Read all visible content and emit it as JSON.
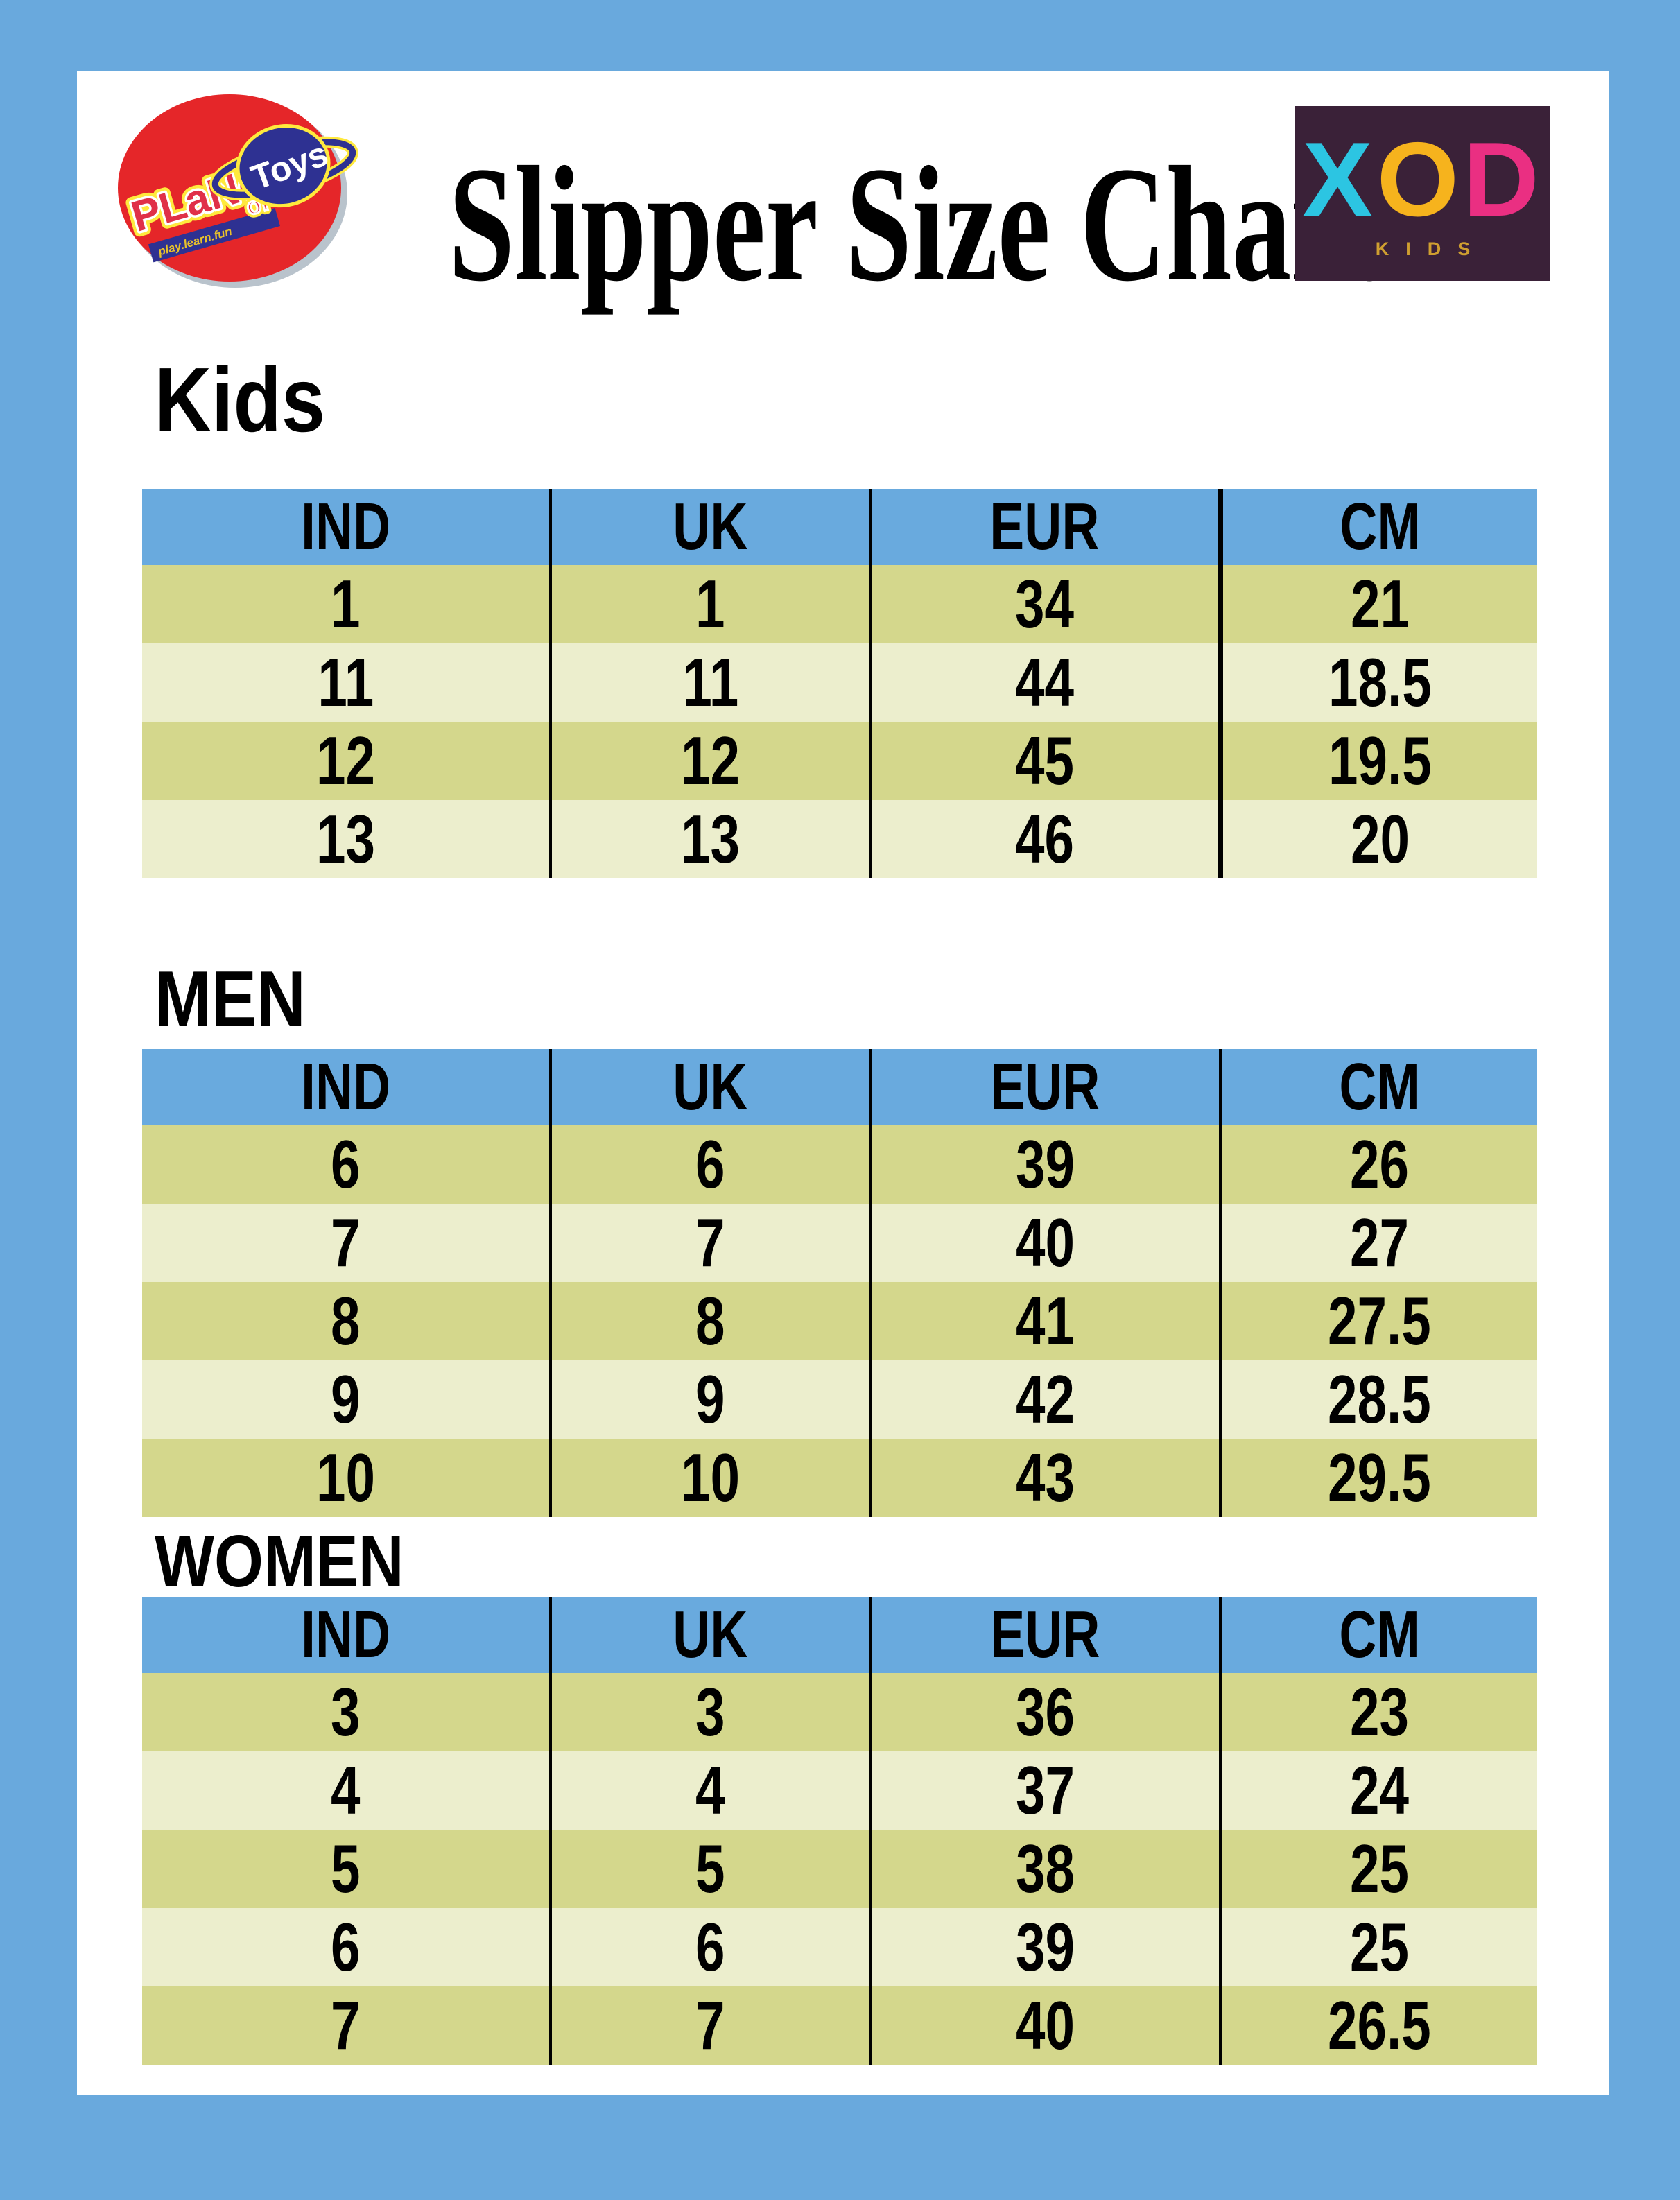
{
  "header": {
    "title": "Slipper Size Chart",
    "planet_logo": {
      "name": "PLaNet",
      "of": "of",
      "toys": "Toys",
      "tagline": "play.learn.fun"
    },
    "xod_logo": {
      "x": "X",
      "o": "O",
      "d": "D",
      "subtitle": "KIDS"
    }
  },
  "colors": {
    "frame_blue": "#69a9dd",
    "table_header_blue": "#69aade",
    "row_dark": "#d4d78c",
    "row_light": "#eceecd",
    "xod_bg": "#3a2138",
    "xod_x": "#2cc5e2",
    "xod_o": "#f6b31d",
    "xod_d": "#ea2f82",
    "xod_kids_text": "#cf9f30",
    "planet_red": "#e52629",
    "planet_navy": "#2e3192",
    "planet_yellow": "#ffe93d",
    "planet_letter_red": "#e03048",
    "tagline_yellow": "#e8c12a",
    "text_black": "#000000"
  },
  "sections": [
    {
      "heading": "Kids",
      "columns": [
        "IND",
        "UK",
        "EUR",
        "CM"
      ],
      "rows": [
        [
          "1",
          "1",
          "34",
          "21"
        ],
        [
          "11",
          "11",
          "44",
          "18.5"
        ],
        [
          "12",
          "12",
          "45",
          "19.5"
        ],
        [
          "13",
          "13",
          "46",
          "20"
        ]
      ]
    },
    {
      "heading": "MEN",
      "columns": [
        "IND",
        "UK",
        "EUR",
        "CM"
      ],
      "rows": [
        [
          "6",
          "6",
          "39",
          "26"
        ],
        [
          "7",
          "7",
          "40",
          "27"
        ],
        [
          "8",
          "8",
          "41",
          "27.5"
        ],
        [
          "9",
          "9",
          "42",
          "28.5"
        ],
        [
          "10",
          "10",
          "43",
          "29.5"
        ]
      ]
    },
    {
      "heading": "WOMEN",
      "columns": [
        "IND",
        "UK",
        "EUR",
        "CM"
      ],
      "rows": [
        [
          "3",
          "3",
          "36",
          "23"
        ],
        [
          "4",
          "4",
          "37",
          "24"
        ],
        [
          "5",
          "5",
          "38",
          "25"
        ],
        [
          "6",
          "6",
          "39",
          "25"
        ],
        [
          "7",
          "7",
          "40",
          "26.5"
        ]
      ]
    }
  ]
}
